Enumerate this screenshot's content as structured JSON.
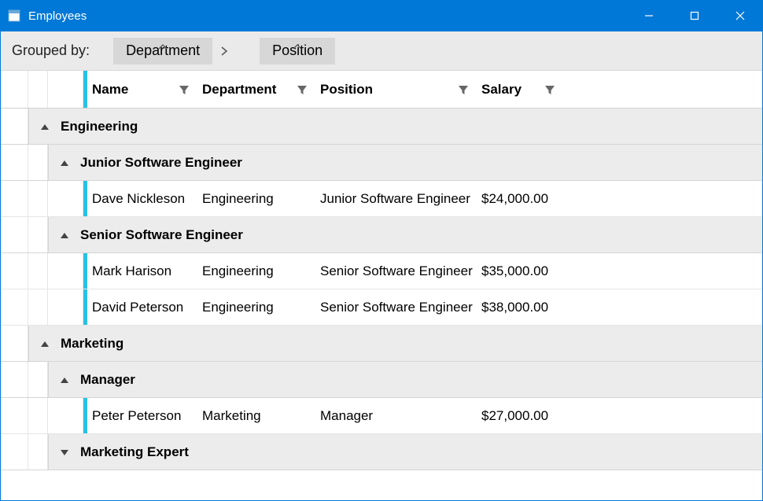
{
  "colors": {
    "titlebar_bg": "#0078d7",
    "titlebar_text": "#ffffff",
    "groupbar_bg": "#eaeaea",
    "group_chip_bg": "#d7d7d7",
    "accent": "#29c1e6",
    "group_row_bg": "#ececec",
    "border": "#d5d5d5",
    "text": "#000000"
  },
  "window": {
    "title": "Employees"
  },
  "groupbar": {
    "label": "Grouped by:",
    "chips": [
      "Department",
      "Position"
    ]
  },
  "columns": {
    "name": "Name",
    "department": "Department",
    "position": "Position",
    "salary": "Salary"
  },
  "groups": [
    {
      "label": "Engineering",
      "expanded": true,
      "subgroups": [
        {
          "label": "Junior Software Engineer",
          "expanded": true,
          "rows": [
            {
              "name": "Dave Nickleson",
              "department": "Engineering",
              "position": "Junior Software Engineer",
              "salary": "$24,000.00"
            }
          ]
        },
        {
          "label": "Senior Software Engineer",
          "expanded": true,
          "rows": [
            {
              "name": "Mark Harison",
              "department": "Engineering",
              "position": "Senior Software Engineer",
              "salary": "$35,000.00"
            },
            {
              "name": "David Peterson",
              "department": "Engineering",
              "position": "Senior Software Engineer",
              "salary": "$38,000.00"
            }
          ]
        }
      ]
    },
    {
      "label": "Marketing",
      "expanded": true,
      "subgroups": [
        {
          "label": "Manager",
          "expanded": true,
          "rows": [
            {
              "name": "Peter Peterson",
              "department": "Marketing",
              "position": "Manager",
              "salary": "$27,000.00"
            }
          ]
        },
        {
          "label": "Marketing Expert",
          "expanded": false,
          "rows": []
        }
      ]
    }
  ]
}
